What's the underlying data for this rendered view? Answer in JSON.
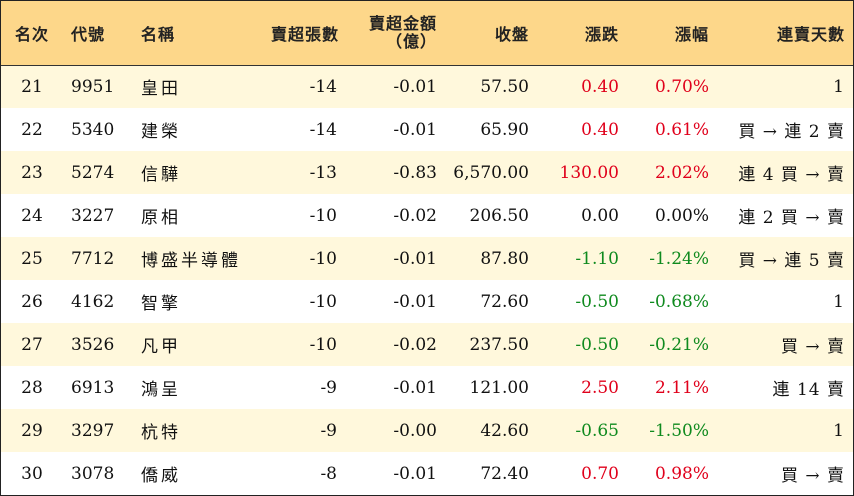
{
  "headers": {
    "rank": "名次",
    "code": "代號",
    "name": "名稱",
    "sell_lots": "賣超張數",
    "sell_amount_line1": "賣超金額",
    "sell_amount_line2": "（億）",
    "close": "收盤",
    "change": "漲跌",
    "change_pct": "漲幅",
    "streak": "連賣天數"
  },
  "colors": {
    "header_bg": "#fdd78a",
    "stripe_bg": "#fff8dc",
    "up": "#e0001b",
    "down": "#0f8a1e"
  },
  "rows": [
    {
      "rank": "21",
      "code": "9951",
      "name": "皇田",
      "lots": "-14",
      "amount": "-0.01",
      "close": "57.50",
      "change": "0.40",
      "pct": "0.70%",
      "dir": "up",
      "streak": "1",
      "streak_align": "r"
    },
    {
      "rank": "22",
      "code": "5340",
      "name": "建榮",
      "lots": "-14",
      "amount": "-0.01",
      "close": "65.90",
      "change": "0.40",
      "pct": "0.61%",
      "dir": "up",
      "streak": "買 → 連 2 賣",
      "streak_align": "r"
    },
    {
      "rank": "23",
      "code": "5274",
      "name": "信驊",
      "lots": "-13",
      "amount": "-0.83",
      "close": "6,570.00",
      "change": "130.00",
      "pct": "2.02%",
      "dir": "up",
      "streak": "連 4 買 → 賣",
      "streak_align": "r"
    },
    {
      "rank": "24",
      "code": "3227",
      "name": "原相",
      "lots": "-10",
      "amount": "-0.02",
      "close": "206.50",
      "change": "0.00",
      "pct": "0.00%",
      "dir": "flat",
      "streak": "連 2 買 → 賣",
      "streak_align": "r"
    },
    {
      "rank": "25",
      "code": "7712",
      "name": "博盛半導體",
      "lots": "-10",
      "amount": "-0.01",
      "close": "87.80",
      "change": "-1.10",
      "pct": "-1.24%",
      "dir": "down",
      "streak": "買 → 連 5 賣",
      "streak_align": "r"
    },
    {
      "rank": "26",
      "code": "4162",
      "name": "智擎",
      "lots": "-10",
      "amount": "-0.01",
      "close": "72.60",
      "change": "-0.50",
      "pct": "-0.68%",
      "dir": "down",
      "streak": "1",
      "streak_align": "r"
    },
    {
      "rank": "27",
      "code": "3526",
      "name": "凡甲",
      "lots": "-10",
      "amount": "-0.02",
      "close": "237.50",
      "change": "-0.50",
      "pct": "-0.21%",
      "dir": "down",
      "streak": "買 → 賣",
      "streak_align": "r"
    },
    {
      "rank": "28",
      "code": "6913",
      "name": "鴻呈",
      "lots": "-9",
      "amount": "-0.01",
      "close": "121.00",
      "change": "2.50",
      "pct": "2.11%",
      "dir": "up",
      "streak": "連 14 賣",
      "streak_align": "r"
    },
    {
      "rank": "29",
      "code": "3297",
      "name": "杭特",
      "lots": "-9",
      "amount": "-0.00",
      "close": "42.60",
      "change": "-0.65",
      "pct": "-1.50%",
      "dir": "down",
      "streak": "1",
      "streak_align": "r"
    },
    {
      "rank": "30",
      "code": "3078",
      "name": "僑威",
      "lots": "-8",
      "amount": "-0.01",
      "close": "72.40",
      "change": "0.70",
      "pct": "0.98%",
      "dir": "up",
      "streak": "買 → 賣",
      "streak_align": "r"
    }
  ]
}
